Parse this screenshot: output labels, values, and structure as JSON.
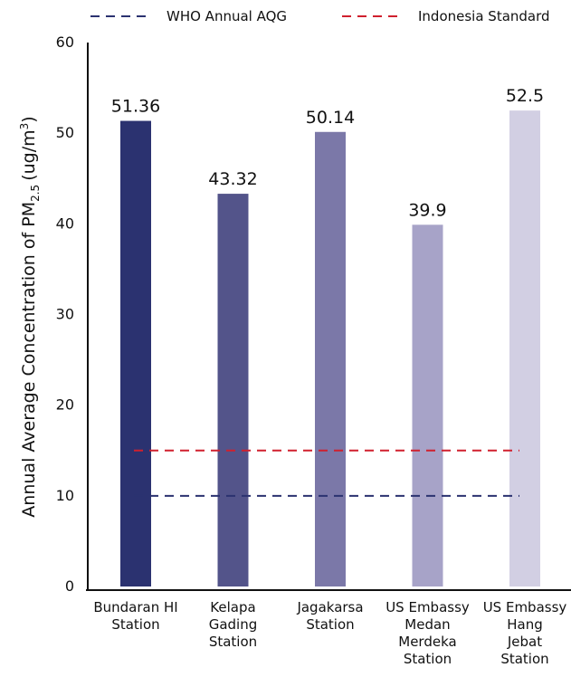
{
  "chart_data": {
    "type": "bar",
    "y_label": {
      "main": "Annual Average Concentration of PM",
      "sub": "2.5",
      "unit": "(ug/m",
      "sup": "3",
      "close": ")"
    },
    "categories": [
      [
        "Bundaran HI",
        "Station"
      ],
      [
        "Kelapa",
        "Gading",
        "Station"
      ],
      [
        "Jagakarsa",
        "Station"
      ],
      [
        "US Embassy",
        "Medan",
        "Merdeka",
        "Station"
      ],
      [
        "US Embassy",
        "Hang",
        "Jebat",
        "Station"
      ]
    ],
    "values": [
      51.36,
      43.32,
      50.14,
      39.9,
      52.5
    ],
    "colors": [
      "#2b3270",
      "#53548a",
      "#7b78a8",
      "#a7a3c8",
      "#d2cfe3"
    ],
    "reference_lines": [
      {
        "name": "WHO Annual AQG",
        "color": "#2b3270",
        "value": 10
      },
      {
        "name": "Indonesia Standard",
        "color": "#d0202e",
        "value": 15
      }
    ],
    "ylim": [
      0,
      60
    ],
    "yticks": [
      0,
      10,
      20,
      30,
      40,
      50,
      60
    ]
  }
}
